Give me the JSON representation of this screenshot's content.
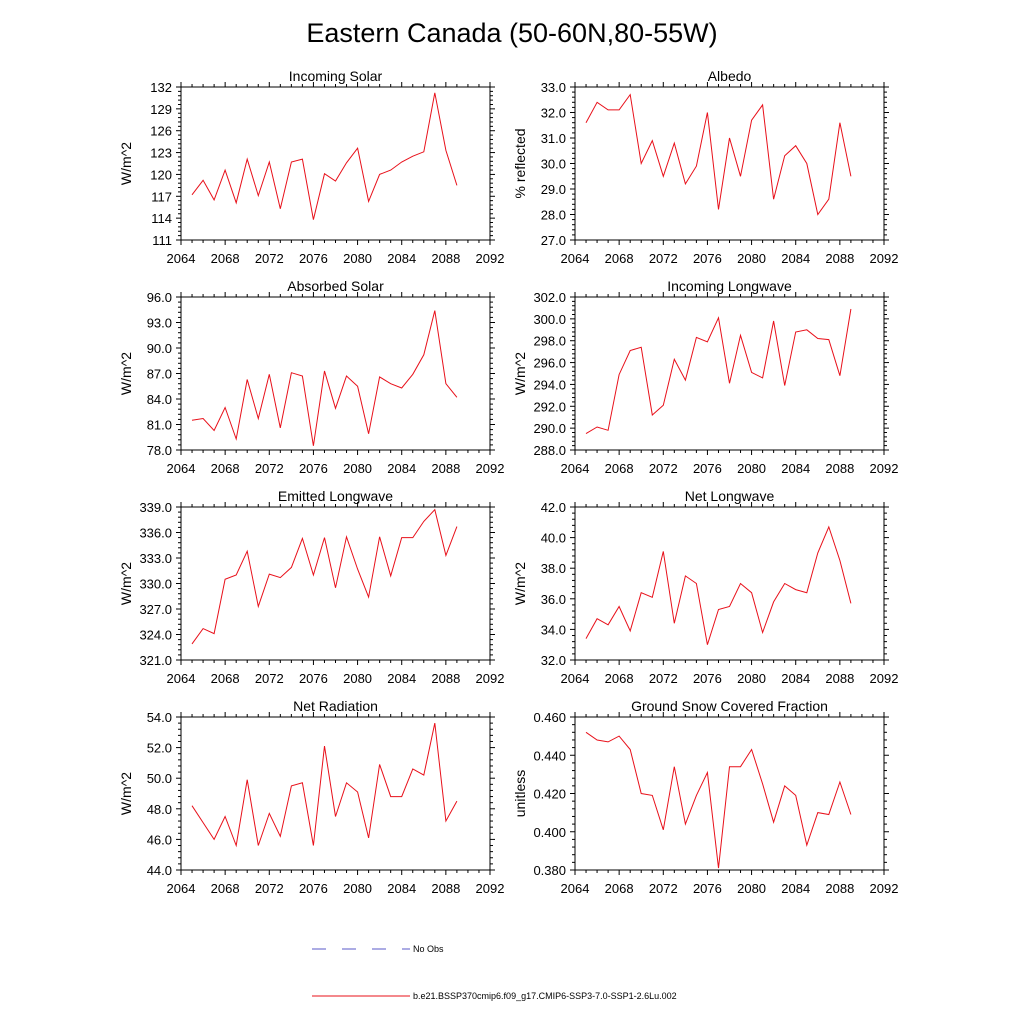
{
  "title": "Eastern Canada (50-60N,80-55W)",
  "legend": {
    "obs_label": "No Obs",
    "obs_color": "#5a5ac8",
    "model_label": "b.e21.BSSP370cmip6.f09_g17.CMIP6-SSP3-7.0-SSP1-2.6Lu.002",
    "model_color": "#e8101a"
  },
  "chart_data": [
    {
      "type": "line",
      "title": "Incoming Solar",
      "ylabel": "W/m^2",
      "xlim": [
        2064,
        2092
      ],
      "xticks": [
        "2064",
        "2068",
        "2072",
        "2076",
        "2080",
        "2084",
        "2088",
        "2092"
      ],
      "ylim": [
        111,
        132
      ],
      "yticks": [
        "111",
        "114",
        "117",
        "120",
        "123",
        "126",
        "129",
        "132"
      ],
      "x": [
        2065,
        2066,
        2067,
        2068,
        2069,
        2070,
        2071,
        2072,
        2073,
        2074,
        2075,
        2076,
        2077,
        2078,
        2079,
        2080,
        2081,
        2082,
        2083,
        2084,
        2085,
        2086,
        2087,
        2088,
        2089
      ],
      "values": [
        117.2,
        119.2,
        116.5,
        120.6,
        116.1,
        122.1,
        117.1,
        121.7,
        115.3,
        121.7,
        122.1,
        113.8,
        120.1,
        119.1,
        121.6,
        123.6,
        116.3,
        120.0,
        120.6,
        121.7,
        122.5,
        123.1,
        131.2,
        123.3,
        118.5
      ]
    },
    {
      "type": "line",
      "title": "Albedo",
      "ylabel": "% reflected",
      "xlim": [
        2064,
        2092
      ],
      "xticks": [
        "2064",
        "2068",
        "2072",
        "2076",
        "2080",
        "2084",
        "2088",
        "2092"
      ],
      "ylim": [
        27.0,
        33.0
      ],
      "yticks": [
        "27.0",
        "28.0",
        "29.0",
        "30.0",
        "31.0",
        "32.0",
        "33.0"
      ],
      "x": [
        2065,
        2066,
        2067,
        2068,
        2069,
        2070,
        2071,
        2072,
        2073,
        2074,
        2075,
        2076,
        2077,
        2078,
        2079,
        2080,
        2081,
        2082,
        2083,
        2084,
        2085,
        2086,
        2087,
        2088,
        2089
      ],
      "values": [
        31.6,
        32.4,
        32.1,
        32.1,
        32.7,
        30.0,
        30.9,
        29.5,
        30.8,
        29.2,
        29.9,
        32.0,
        28.2,
        31.0,
        29.5,
        31.7,
        32.3,
        28.6,
        30.3,
        30.7,
        30.0,
        28.0,
        28.6,
        31.6,
        29.5
      ]
    },
    {
      "type": "line",
      "title": "Absorbed Solar",
      "ylabel": "W/m^2",
      "xlim": [
        2064,
        2092
      ],
      "xticks": [
        "2064",
        "2068",
        "2072",
        "2076",
        "2080",
        "2084",
        "2088",
        "2092"
      ],
      "ylim": [
        78.0,
        96.0
      ],
      "yticks": [
        "78.0",
        "81.0",
        "84.0",
        "87.0",
        "90.0",
        "93.0",
        "96.0"
      ],
      "x": [
        2065,
        2066,
        2067,
        2068,
        2069,
        2070,
        2071,
        2072,
        2073,
        2074,
        2075,
        2076,
        2077,
        2078,
        2079,
        2080,
        2081,
        2082,
        2083,
        2084,
        2085,
        2086,
        2087,
        2088,
        2089
      ],
      "values": [
        81.5,
        81.7,
        80.3,
        83.0,
        79.3,
        86.3,
        81.7,
        86.9,
        80.6,
        87.1,
        86.7,
        78.5,
        87.3,
        82.9,
        86.7,
        85.5,
        79.9,
        86.6,
        85.8,
        85.3,
        86.9,
        89.2,
        94.4,
        85.8,
        84.2
      ]
    },
    {
      "type": "line",
      "title": "Incoming Longwave",
      "ylabel": "W/m^2",
      "xlim": [
        2064,
        2092
      ],
      "xticks": [
        "2064",
        "2068",
        "2072",
        "2076",
        "2080",
        "2084",
        "2088",
        "2092"
      ],
      "ylim": [
        288.0,
        302.0
      ],
      "yticks": [
        "288.0",
        "290.0",
        "292.0",
        "294.0",
        "296.0",
        "298.0",
        "300.0",
        "302.0"
      ],
      "x": [
        2065,
        2066,
        2067,
        2068,
        2069,
        2070,
        2071,
        2072,
        2073,
        2074,
        2075,
        2076,
        2077,
        2078,
        2079,
        2080,
        2081,
        2082,
        2083,
        2084,
        2085,
        2086,
        2087,
        2088,
        2089
      ],
      "values": [
        289.5,
        290.1,
        289.8,
        294.9,
        297.1,
        297.4,
        291.2,
        292.1,
        296.3,
        294.4,
        298.3,
        297.9,
        300.1,
        294.1,
        298.5,
        295.1,
        294.6,
        299.8,
        293.9,
        298.8,
        299.0,
        298.2,
        298.1,
        294.8,
        300.9
      ]
    },
    {
      "type": "line",
      "title": "Emitted Longwave",
      "ylabel": "W/m^2",
      "xlim": [
        2064,
        2092
      ],
      "xticks": [
        "2064",
        "2068",
        "2072",
        "2076",
        "2080",
        "2084",
        "2088",
        "2092"
      ],
      "ylim": [
        321.0,
        339.0
      ],
      "yticks": [
        "321.0",
        "324.0",
        "327.0",
        "330.0",
        "333.0",
        "336.0",
        "339.0"
      ],
      "x": [
        2065,
        2066,
        2067,
        2068,
        2069,
        2070,
        2071,
        2072,
        2073,
        2074,
        2075,
        2076,
        2077,
        2078,
        2079,
        2080,
        2081,
        2082,
        2083,
        2084,
        2085,
        2086,
        2087,
        2088,
        2089
      ],
      "values": [
        322.9,
        324.7,
        324.1,
        330.5,
        331.0,
        333.8,
        327.3,
        331.1,
        330.7,
        331.9,
        335.3,
        331.0,
        335.4,
        329.5,
        335.5,
        331.7,
        328.4,
        335.5,
        330.9,
        335.4,
        335.4,
        337.3,
        338.7,
        333.3,
        336.7
      ]
    },
    {
      "type": "line",
      "title": "Net Longwave",
      "ylabel": "W/m^2",
      "xlim": [
        2064,
        2092
      ],
      "xticks": [
        "2064",
        "2068",
        "2072",
        "2076",
        "2080",
        "2084",
        "2088",
        "2092"
      ],
      "ylim": [
        32.0,
        42.0
      ],
      "yticks": [
        "32.0",
        "34.0",
        "36.0",
        "38.0",
        "40.0",
        "42.0"
      ],
      "x": [
        2065,
        2066,
        2067,
        2068,
        2069,
        2070,
        2071,
        2072,
        2073,
        2074,
        2075,
        2076,
        2077,
        2078,
        2079,
        2080,
        2081,
        2082,
        2083,
        2084,
        2085,
        2086,
        2087,
        2088,
        2089
      ],
      "values": [
        33.4,
        34.7,
        34.3,
        35.5,
        33.9,
        36.4,
        36.1,
        39.1,
        34.4,
        37.5,
        37.0,
        33.0,
        35.3,
        35.5,
        37.0,
        36.4,
        33.8,
        35.8,
        37.0,
        36.6,
        36.4,
        39.0,
        40.7,
        38.5,
        35.7
      ]
    },
    {
      "type": "line",
      "title": "Net Radiation",
      "ylabel": "W/m^2",
      "xlim": [
        2064,
        2092
      ],
      "xticks": [
        "2064",
        "2068",
        "2072",
        "2076",
        "2080",
        "2084",
        "2088",
        "2092"
      ],
      "ylim": [
        44.0,
        54.0
      ],
      "yticks": [
        "44.0",
        "46.0",
        "48.0",
        "50.0",
        "52.0",
        "54.0"
      ],
      "x": [
        2065,
        2066,
        2067,
        2068,
        2069,
        2070,
        2071,
        2072,
        2073,
        2074,
        2075,
        2076,
        2077,
        2078,
        2079,
        2080,
        2081,
        2082,
        2083,
        2084,
        2085,
        2086,
        2087,
        2088,
        2089
      ],
      "values": [
        48.2,
        47.1,
        46.0,
        47.5,
        45.6,
        49.9,
        45.6,
        47.7,
        46.2,
        49.5,
        49.7,
        45.6,
        52.1,
        47.5,
        49.7,
        49.1,
        46.1,
        50.9,
        48.8,
        48.8,
        50.6,
        50.2,
        53.6,
        47.2,
        48.5
      ]
    },
    {
      "type": "line",
      "title": "Ground Snow Covered Fraction",
      "ylabel": "unitless",
      "xlim": [
        2064,
        2092
      ],
      "xticks": [
        "2064",
        "2068",
        "2072",
        "2076",
        "2080",
        "2084",
        "2088",
        "2092"
      ],
      "ylim": [
        0.38,
        0.46
      ],
      "yticks": [
        "0.380",
        "0.400",
        "0.420",
        "0.440",
        "0.460"
      ],
      "x": [
        2065,
        2066,
        2067,
        2068,
        2069,
        2070,
        2071,
        2072,
        2073,
        2074,
        2075,
        2076,
        2077,
        2078,
        2079,
        2080,
        2081,
        2082,
        2083,
        2084,
        2085,
        2086,
        2087,
        2088,
        2089
      ],
      "values": [
        0.452,
        0.448,
        0.447,
        0.45,
        0.443,
        0.42,
        0.419,
        0.401,
        0.434,
        0.404,
        0.419,
        0.431,
        0.381,
        0.434,
        0.434,
        0.443,
        0.425,
        0.405,
        0.424,
        0.419,
        0.393,
        0.41,
        0.409,
        0.426,
        0.409
      ]
    }
  ]
}
